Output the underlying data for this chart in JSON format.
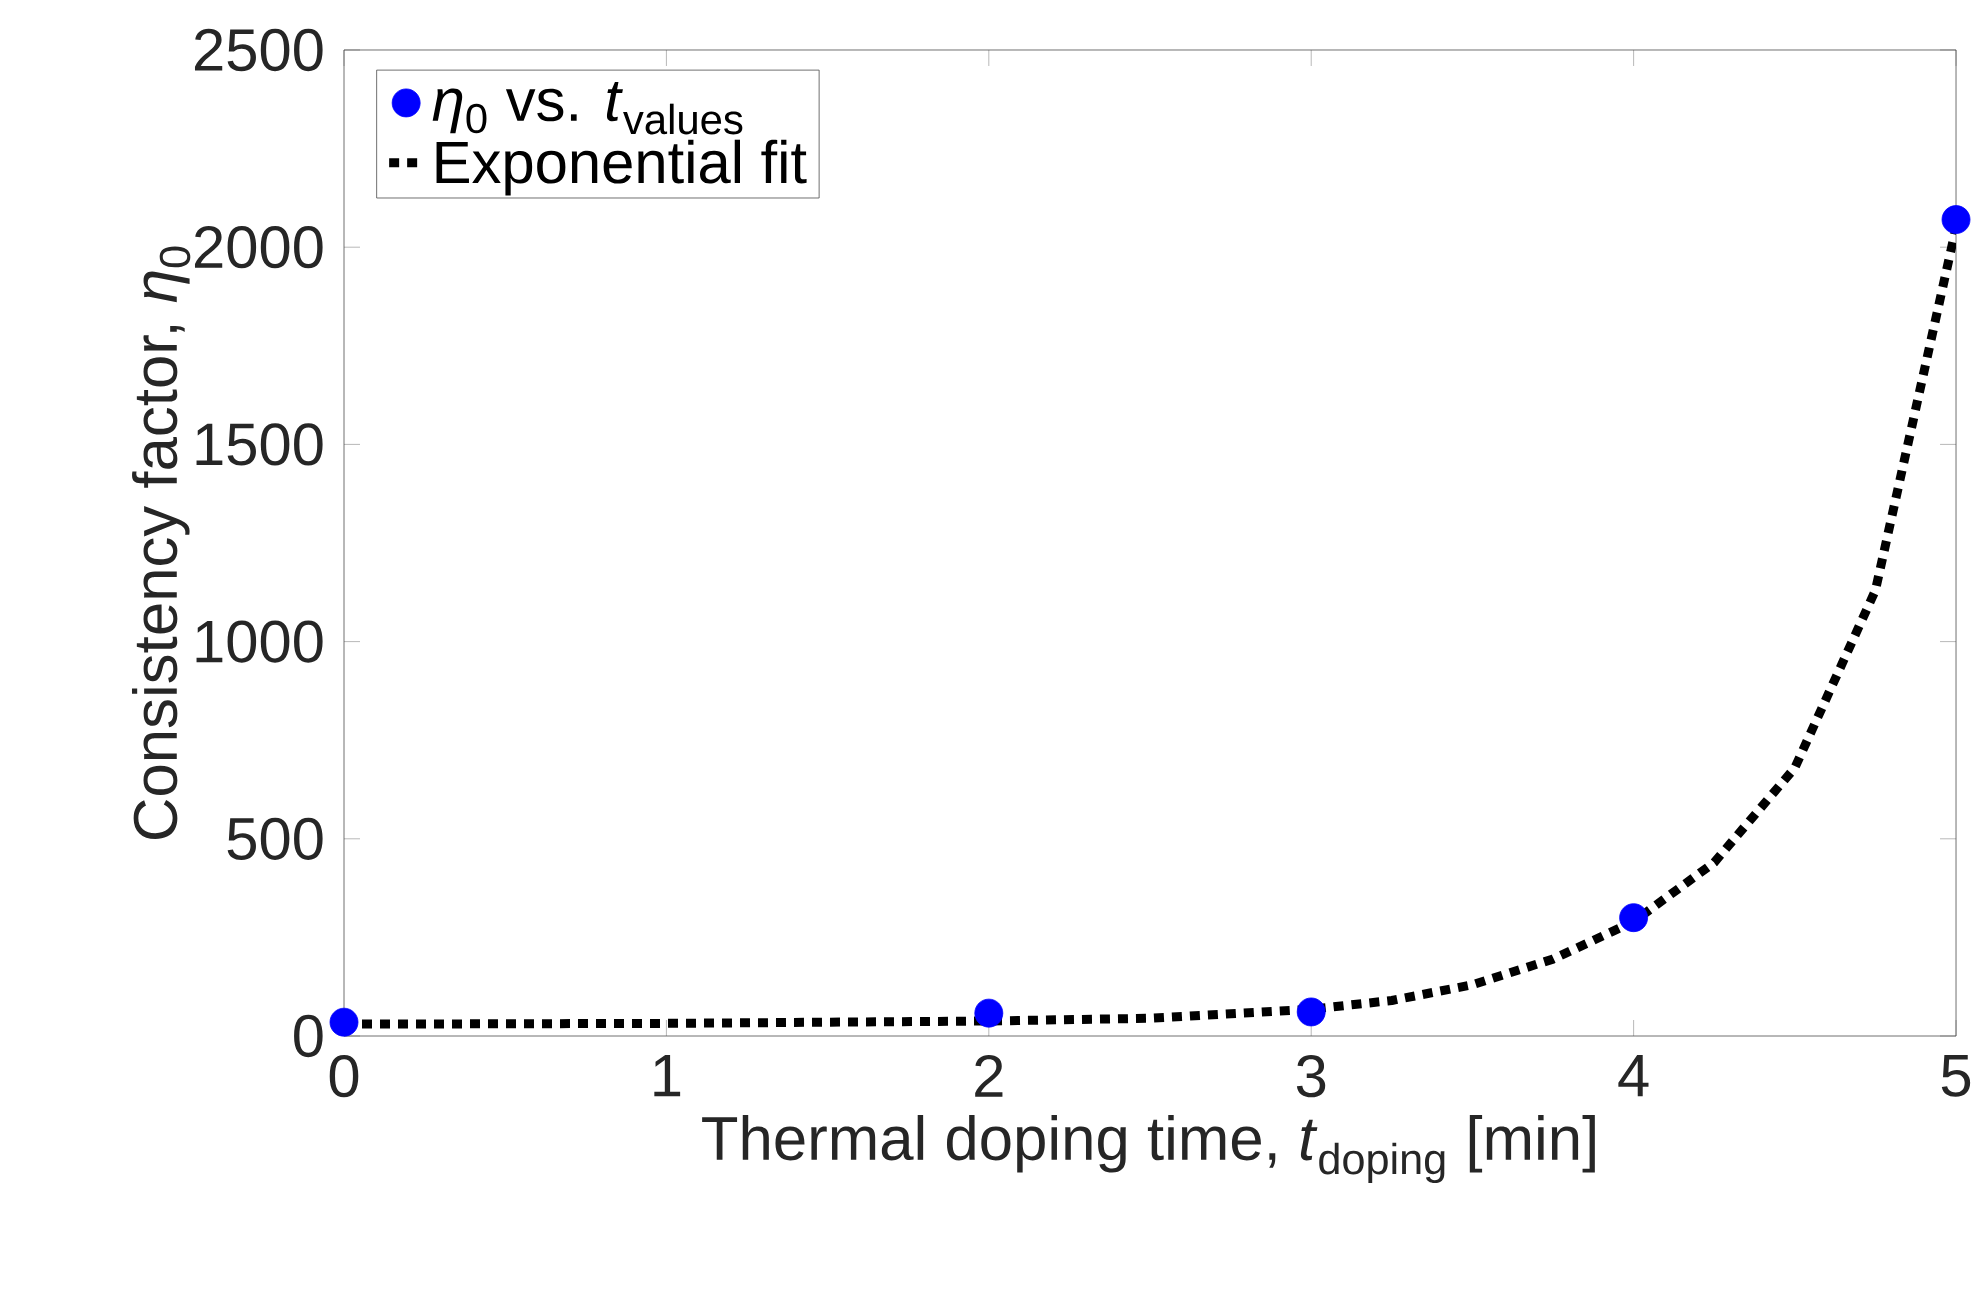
{
  "chart_data": {
    "type": "scatter",
    "xlabel": "Thermal doping time, *t*$_{doping}$ [min]",
    "ylabel": "Consistency factor, *η*$_{0}$",
    "xlim": [
      0,
      5
    ],
    "xticks": [
      0,
      1,
      2,
      3,
      4,
      5
    ],
    "ylim": [
      0,
      2500
    ],
    "yticks": [
      0,
      500,
      1000,
      1500,
      2000,
      2500
    ],
    "grid": false,
    "legend": "top left",
    "series": [
      {
        "name": "*η*$_{0}$ vs. *t*$_{values}$",
        "color": "#0000ff",
        "marker": "circle",
        "x": [
          0,
          2,
          3,
          4,
          5
        ],
        "values": [
          35,
          58,
          61,
          300,
          2070
        ]
      },
      {
        "name": "Exponential fit",
        "type": "line",
        "color": "#000000",
        "marker": "none",
        "line_style": "dotted",
        "x": [
          0,
          1,
          2,
          2.5,
          3,
          3.25,
          3.5,
          3.75,
          4,
          4.25,
          4.5,
          4.75,
          5
        ],
        "values": [
          30,
          32,
          38,
          45,
          68,
          90,
          130,
          195,
          290,
          440,
          680,
          1130,
          2050
        ]
      }
    ]
  }
}
